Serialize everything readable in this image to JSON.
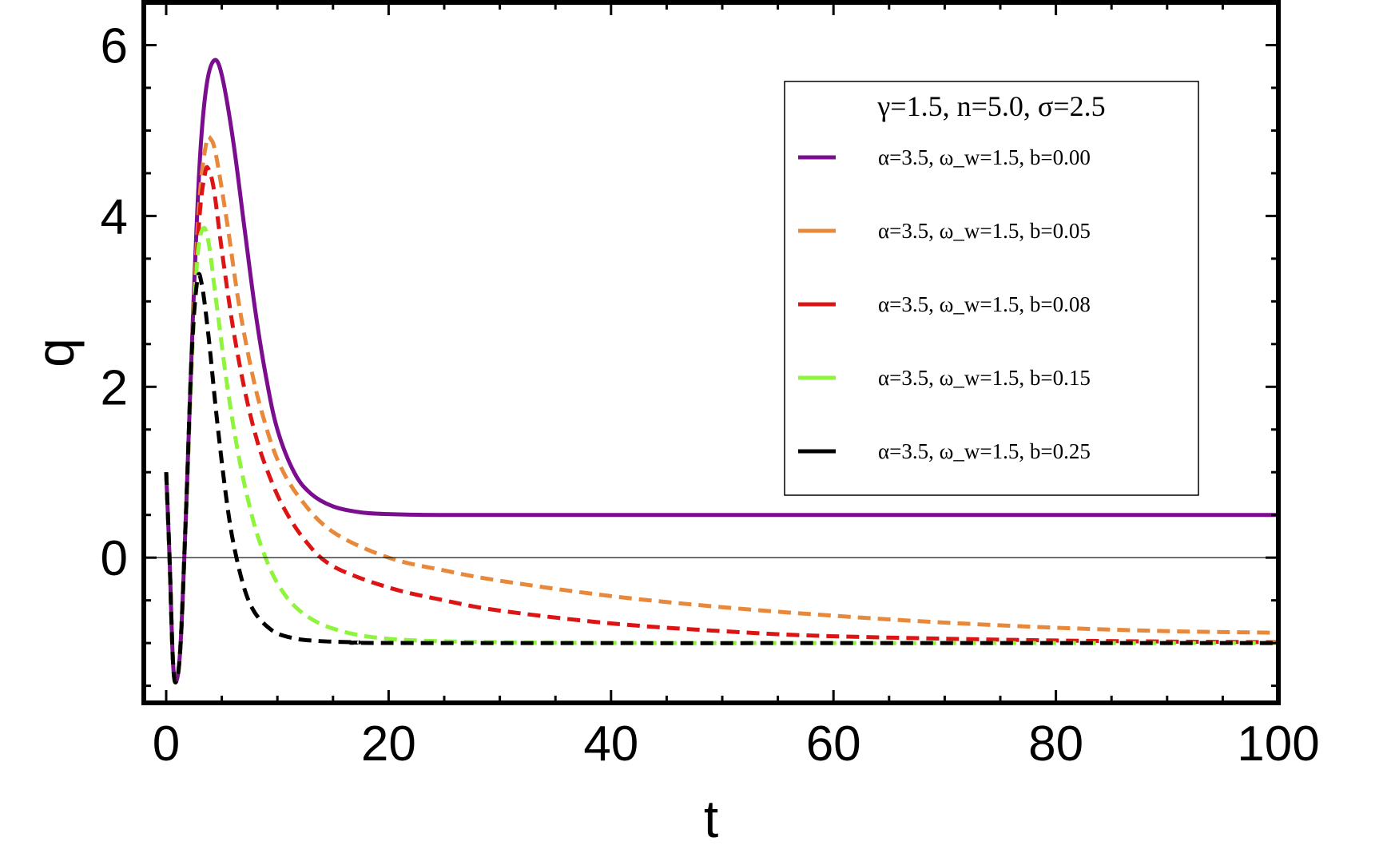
{
  "chart_data": {
    "type": "line",
    "xlabel": "t",
    "ylabel": "q",
    "xlim": [
      0,
      100
    ],
    "ylim": [
      -1.7,
      6.5
    ],
    "x_ticks": [
      "0",
      "20",
      "40",
      "60",
      "80",
      "100"
    ],
    "y_ticks": [
      "0",
      "2",
      "4",
      "6"
    ],
    "grid": false,
    "legend_placement": "top-right",
    "legend_title": "γ=1.5, n=5.0, σ=2.5",
    "series": [
      {
        "name": "α=3.5, ω_w=1.5, b=0.00",
        "color": "#7b0d8f",
        "style": "solid",
        "points": [
          [
            0,
            1.0
          ],
          [
            0.3,
            0.0
          ],
          [
            0.6,
            -1.2
          ],
          [
            0.9,
            -1.45
          ],
          [
            1.3,
            -1.0
          ],
          [
            1.8,
            0.6
          ],
          [
            2.4,
            2.8
          ],
          [
            3.0,
            4.6
          ],
          [
            3.6,
            5.5
          ],
          [
            4.3,
            5.82
          ],
          [
            5.0,
            5.65
          ],
          [
            6.0,
            4.9
          ],
          [
            7.0,
            3.9
          ],
          [
            8.0,
            2.9
          ],
          [
            9.0,
            2.1
          ],
          [
            10.0,
            1.5
          ],
          [
            11.5,
            1.0
          ],
          [
            13.0,
            0.75
          ],
          [
            15.0,
            0.6
          ],
          [
            17.5,
            0.53
          ],
          [
            20.0,
            0.51
          ],
          [
            25.0,
            0.5
          ],
          [
            40.0,
            0.5
          ],
          [
            70.0,
            0.5
          ],
          [
            100.0,
            0.5
          ]
        ]
      },
      {
        "name": "α=3.5, ω_w=1.5, b=0.05",
        "color": "#e8883a",
        "style": "dashed",
        "points": [
          [
            0,
            1.0
          ],
          [
            0.3,
            0.0
          ],
          [
            0.6,
            -1.2
          ],
          [
            0.9,
            -1.45
          ],
          [
            1.3,
            -1.0
          ],
          [
            1.8,
            0.6
          ],
          [
            2.4,
            2.7
          ],
          [
            3.0,
            4.2
          ],
          [
            3.6,
            4.85
          ],
          [
            4.0,
            4.9
          ],
          [
            4.5,
            4.7
          ],
          [
            5.5,
            3.9
          ],
          [
            6.5,
            3.0
          ],
          [
            7.5,
            2.3
          ],
          [
            8.5,
            1.75
          ],
          [
            10.0,
            1.15
          ],
          [
            12.0,
            0.7
          ],
          [
            15.0,
            0.3
          ],
          [
            20.0,
            0.0
          ],
          [
            25.0,
            -0.15
          ],
          [
            30.0,
            -0.27
          ],
          [
            40.0,
            -0.45
          ],
          [
            50.0,
            -0.58
          ],
          [
            60.0,
            -0.68
          ],
          [
            70.0,
            -0.76
          ],
          [
            80.0,
            -0.82
          ],
          [
            90.0,
            -0.86
          ],
          [
            100.0,
            -0.88
          ]
        ]
      },
      {
        "name": "α=3.5, ω_w=1.5, b=0.08",
        "color": "#dc1414",
        "style": "dashed",
        "points": [
          [
            0,
            1.0
          ],
          [
            0.3,
            0.0
          ],
          [
            0.6,
            -1.2
          ],
          [
            0.9,
            -1.45
          ],
          [
            1.3,
            -1.0
          ],
          [
            1.8,
            0.6
          ],
          [
            2.4,
            2.6
          ],
          [
            3.0,
            4.0
          ],
          [
            3.5,
            4.5
          ],
          [
            3.8,
            4.55
          ],
          [
            4.3,
            4.3
          ],
          [
            5.0,
            3.6
          ],
          [
            6.0,
            2.7
          ],
          [
            7.0,
            2.0
          ],
          [
            8.0,
            1.45
          ],
          [
            9.0,
            1.05
          ],
          [
            10.5,
            0.6
          ],
          [
            12.5,
            0.2
          ],
          [
            15.0,
            -0.1
          ],
          [
            20.0,
            -0.35
          ],
          [
            25.0,
            -0.5
          ],
          [
            30.0,
            -0.62
          ],
          [
            40.0,
            -0.77
          ],
          [
            50.0,
            -0.86
          ],
          [
            60.0,
            -0.92
          ],
          [
            80.0,
            -0.97
          ],
          [
            100.0,
            -0.99
          ]
        ]
      },
      {
        "name": "α=3.5, ω_w=1.5, b=0.15",
        "color": "#8ef53c",
        "style": "dashed",
        "points": [
          [
            0,
            1.0
          ],
          [
            0.3,
            0.0
          ],
          [
            0.6,
            -1.2
          ],
          [
            0.9,
            -1.45
          ],
          [
            1.3,
            -1.0
          ],
          [
            1.8,
            0.6
          ],
          [
            2.3,
            2.3
          ],
          [
            2.8,
            3.5
          ],
          [
            3.3,
            3.85
          ],
          [
            3.8,
            3.7
          ],
          [
            4.5,
            3.0
          ],
          [
            5.5,
            2.0
          ],
          [
            6.5,
            1.2
          ],
          [
            7.5,
            0.6
          ],
          [
            8.5,
            0.15
          ],
          [
            10.0,
            -0.3
          ],
          [
            12.0,
            -0.62
          ],
          [
            15.0,
            -0.83
          ],
          [
            20.0,
            -0.95
          ],
          [
            30.0,
            -0.99
          ],
          [
            50.0,
            -1.0
          ],
          [
            100.0,
            -1.0
          ]
        ]
      },
      {
        "name": "α=3.5, ω_w=1.5, b=0.25",
        "color": "#000000",
        "style": "dashed",
        "points": [
          [
            0,
            1.0
          ],
          [
            0.3,
            0.0
          ],
          [
            0.6,
            -1.2
          ],
          [
            0.9,
            -1.45
          ],
          [
            1.3,
            -1.0
          ],
          [
            1.8,
            0.6
          ],
          [
            2.3,
            2.4
          ],
          [
            2.8,
            3.25
          ],
          [
            3.2,
            3.2
          ],
          [
            3.8,
            2.6
          ],
          [
            4.5,
            1.7
          ],
          [
            5.3,
            0.8
          ],
          [
            6.0,
            0.2
          ],
          [
            7.0,
            -0.35
          ],
          [
            8.0,
            -0.65
          ],
          [
            9.5,
            -0.85
          ],
          [
            11.0,
            -0.93
          ],
          [
            13.0,
            -0.97
          ],
          [
            17.0,
            -0.99
          ],
          [
            25.0,
            -1.0
          ],
          [
            100.0,
            -1.0
          ]
        ]
      }
    ]
  }
}
